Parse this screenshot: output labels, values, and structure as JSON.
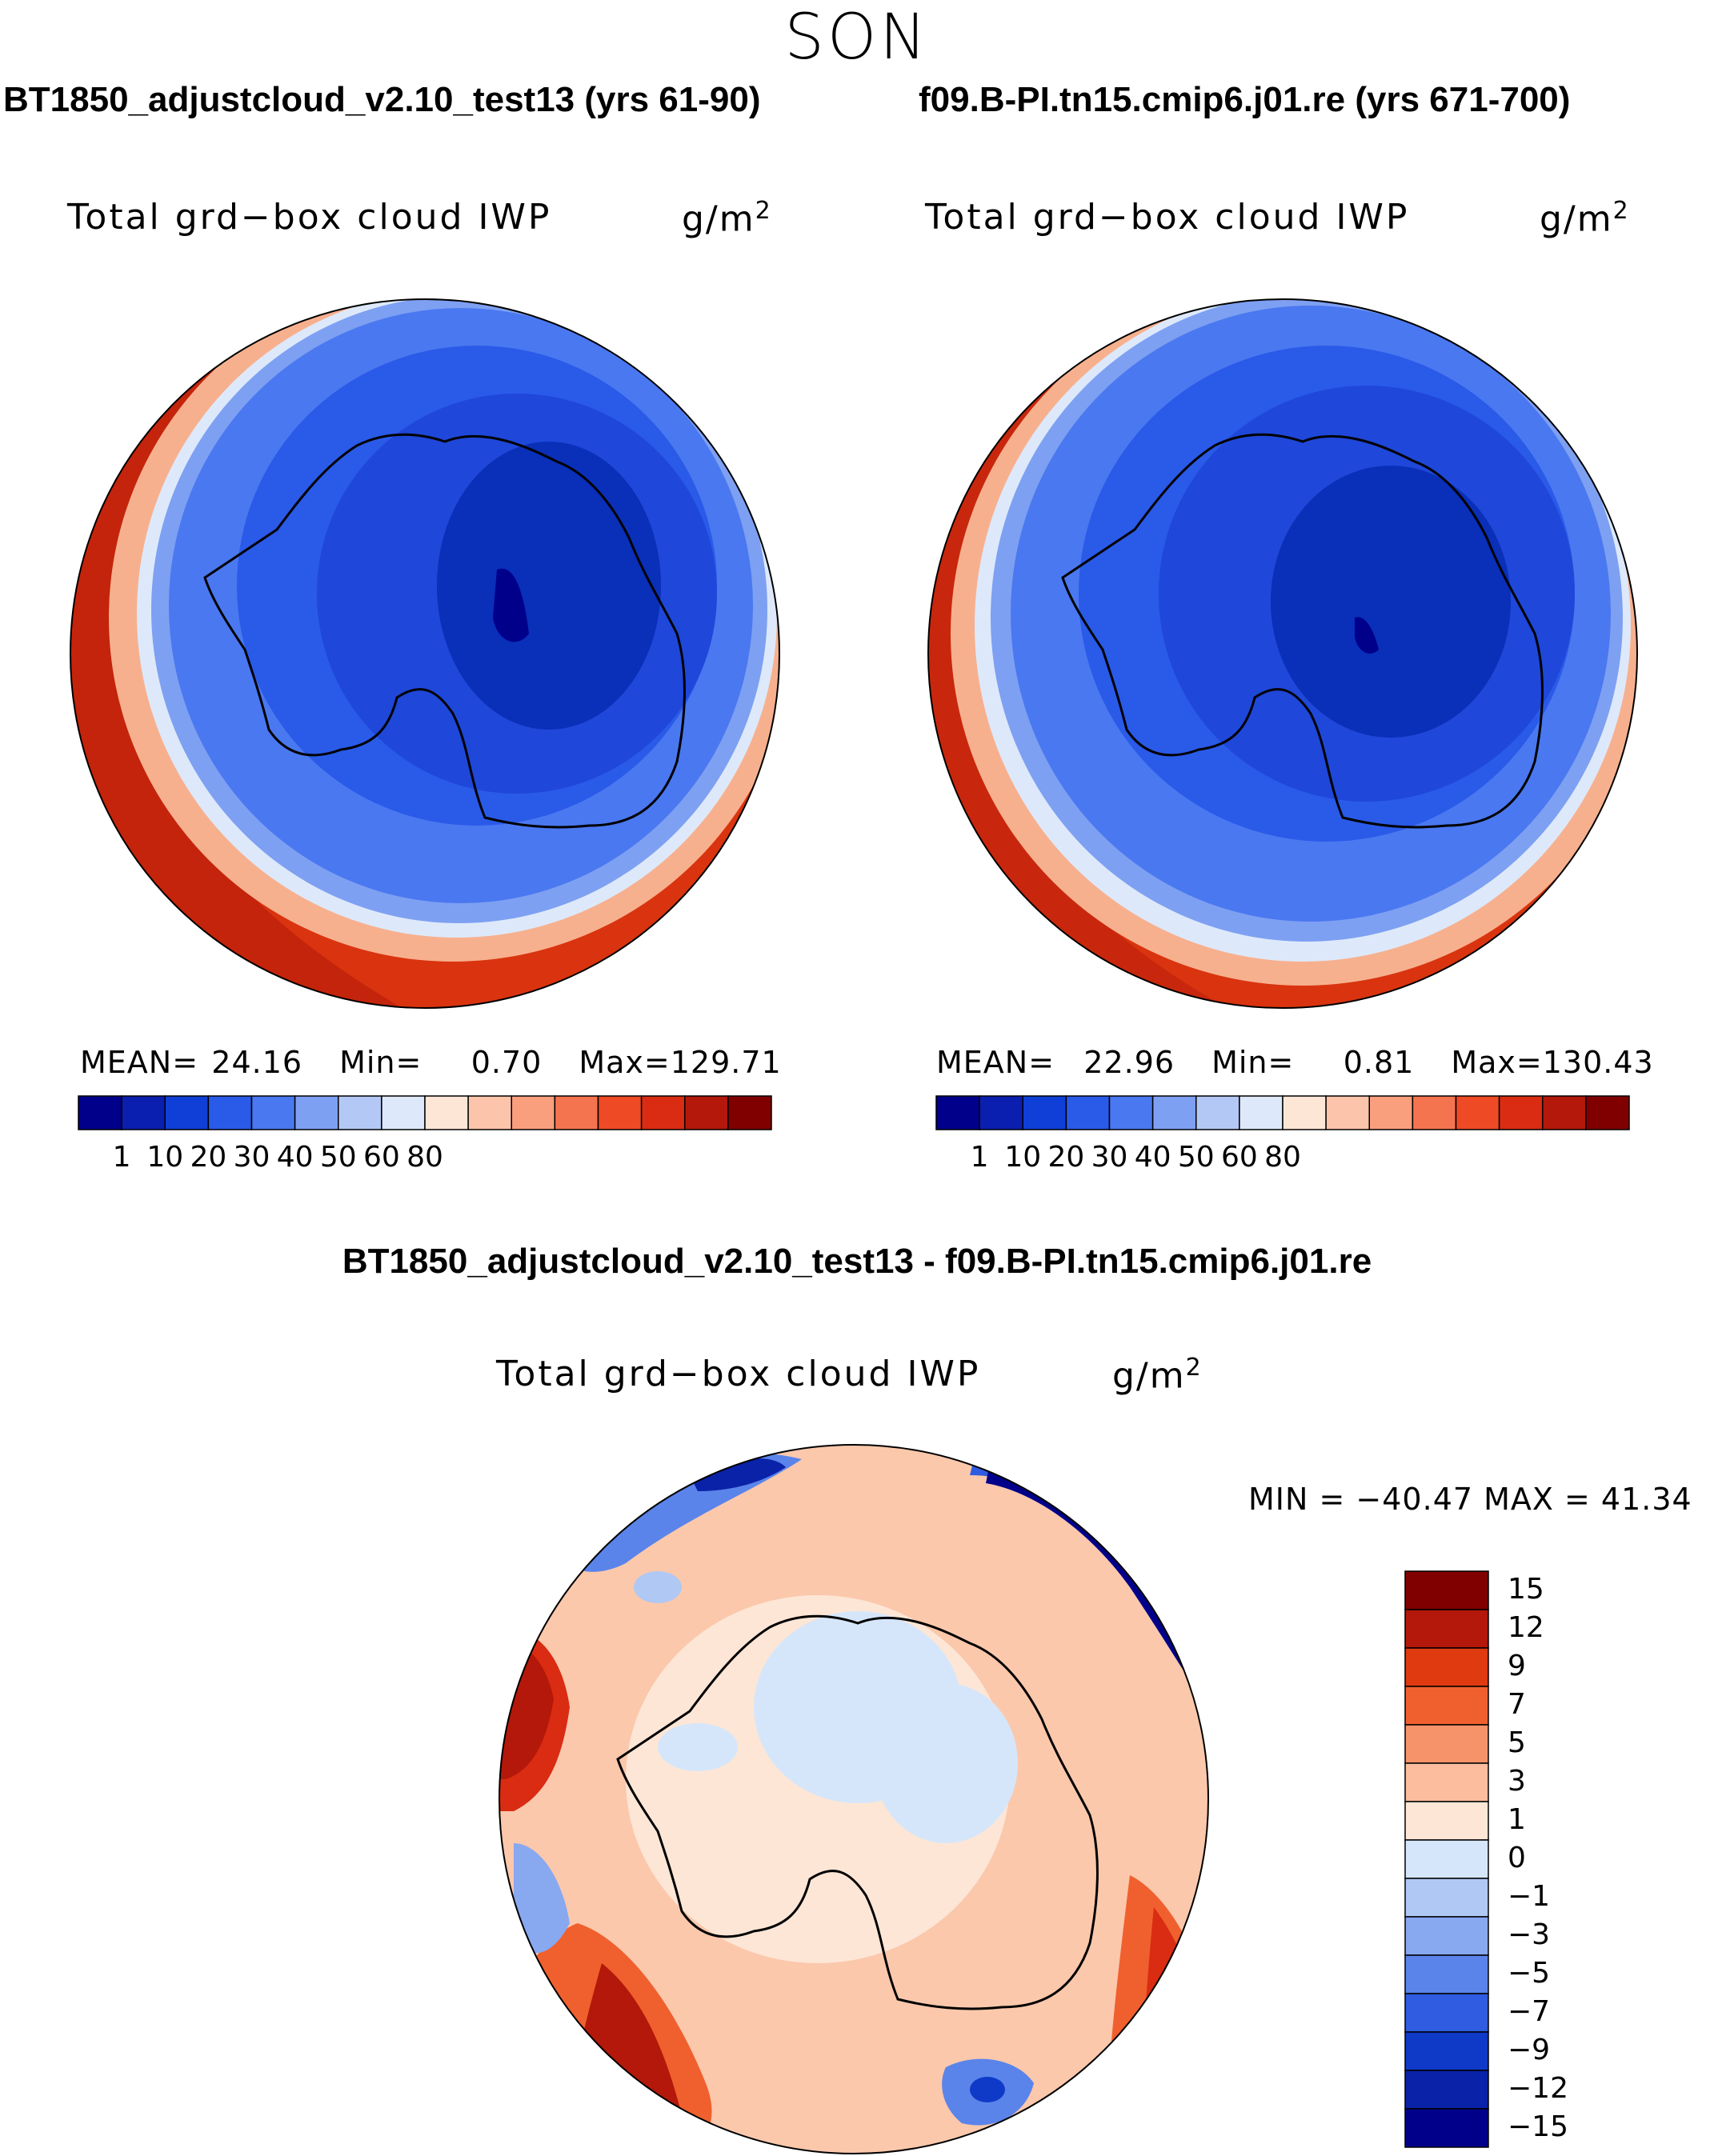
{
  "season": "SON",
  "left_panel": {
    "case_title": "BT1850_adjustcloud_v2.10_test13 (yrs 61-90)",
    "variable": "Total grd−box cloud IWP",
    "units_base": "g/m",
    "units_exp": "2",
    "mean_label": "MEAN=",
    "mean_value": "24.16",
    "min_label": "Min=",
    "min_value": "0.70",
    "max_label": "Max=",
    "max_value": "129.71"
  },
  "right_panel": {
    "case_title": "f09.B-PI.tn15.cmip6.j01.re (yrs 671-700)",
    "variable": "Total grd−box cloud IWP",
    "units_base": "g/m",
    "units_exp": "2",
    "mean_label": "MEAN=",
    "mean_value": "22.96",
    "min_label": "Min=",
    "min_value": "0.81",
    "max_label": "Max=",
    "max_value": "130.43"
  },
  "diff_panel": {
    "title": "BT1850_adjustcloud_v2.10_test13 - f09.B-PI.tn15.cmip6.j01.re",
    "variable": "Total grd−box cloud IWP",
    "units_base": "g/m",
    "units_exp": "2",
    "minmax_text": "MIN = −40.47  MAX =   41.34"
  },
  "abs_colorbar": {
    "colors": [
      "#00008b",
      "#0a1fb0",
      "#0f3fd6",
      "#2a5ae8",
      "#4a78f0",
      "#7ea0f2",
      "#b3c8f5",
      "#dde9fa",
      "#fde6d6",
      "#fcc4aa",
      "#f99f7e",
      "#f47450",
      "#ee4a26",
      "#d92c12",
      "#b3180a",
      "#800000"
    ],
    "labels": [
      "1",
      "10",
      "20",
      "30",
      "40",
      "50",
      "60",
      "80"
    ]
  },
  "diff_colorbar": {
    "colors": [
      "#800000",
      "#b3180a",
      "#e03a10",
      "#f0602e",
      "#f7936a",
      "#fbbd9e",
      "#fde6d6",
      "#d6e6fa",
      "#b0c8f4",
      "#88a8f0",
      "#5a84ea",
      "#2f5ce0",
      "#0f3ac8",
      "#0a22a8",
      "#00008b"
    ],
    "labels": [
      "15",
      "12",
      "9",
      "7",
      "5",
      "3",
      "1",
      "0",
      "−1",
      "−3",
      "−5",
      "−7",
      "−9",
      "−12",
      "−15"
    ]
  },
  "colors": {
    "coast": "#000000",
    "abs_ocean_far": "#d9340f",
    "abs_ocean_band": "#f7b08e",
    "abs_ice_mid": "#4a78f0",
    "abs_ice_inner": "#1f47d9",
    "abs_ice_core": "#0a2fb8",
    "diff_base": "#fbc8ac",
    "diff_neg": "#d6e6fa",
    "diff_strong_pos": "#d92c12",
    "diff_strong_neg": "#00008b"
  }
}
